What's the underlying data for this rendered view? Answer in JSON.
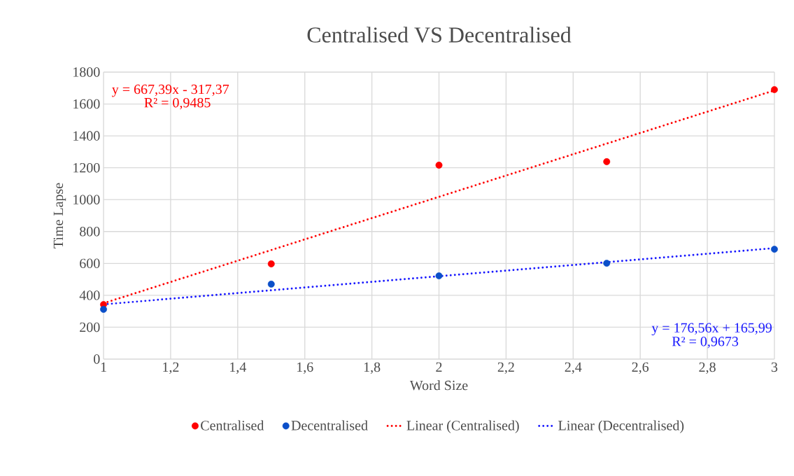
{
  "chart_data": {
    "type": "scatter",
    "title": "Centralised VS Decentralised",
    "xlabel": "Word Size",
    "ylabel": "Time Lapse",
    "xlim": [
      1,
      3
    ],
    "xticks": [
      1,
      {
        "value": 1.2,
        "label": "1,2"
      },
      {
        "value": 1.4,
        "label": "1,4"
      },
      {
        "value": 1.6,
        "label": "1,6"
      },
      {
        "value": 1.8,
        "label": "1,8"
      },
      2,
      {
        "value": 2.2,
        "label": "2,2"
      },
      {
        "value": 2.4,
        "label": "2,4"
      },
      {
        "value": 2.6,
        "label": "2,6"
      },
      {
        "value": 2.8,
        "label": "2,8"
      },
      3
    ],
    "ylim": [
      0,
      1800
    ],
    "yticks": [
      0,
      200,
      400,
      600,
      800,
      1000,
      1200,
      1400,
      1600,
      1800
    ],
    "grid": true,
    "legend": "bottom",
    "series": [
      {
        "name": "Centralised",
        "marker": "circle",
        "color": "#ff0000",
        "x": [
          1,
          1.5,
          2,
          2.5,
          3
        ],
        "values": [
          342,
          597,
          1216,
          1238,
          1690
        ]
      },
      {
        "name": "Decentralised",
        "marker": "circle",
        "color": "#0b4fc9",
        "x": [
          1,
          1.5,
          2,
          2.5,
          3
        ],
        "values": [
          312,
          470,
          522,
          601,
          689
        ]
      },
      {
        "name": "Linear (Centralised)",
        "type": "line",
        "line_style": "dotted",
        "marker": "none",
        "color": "#ff0000",
        "x": [
          1,
          3
        ],
        "values": [
          350,
          1685
        ]
      },
      {
        "name": "Linear (Decentralised)",
        "type": "line",
        "line_style": "dotted",
        "marker": "none",
        "color": "#1a1aff",
        "x": [
          1,
          3
        ],
        "values": [
          343,
          696
        ]
      }
    ],
    "annotations": [
      "y = 667,39x - 317,37",
      "R² = 0,9485",
      "y = 176,56x + 165,99",
      "R² = 0,9673"
    ]
  }
}
